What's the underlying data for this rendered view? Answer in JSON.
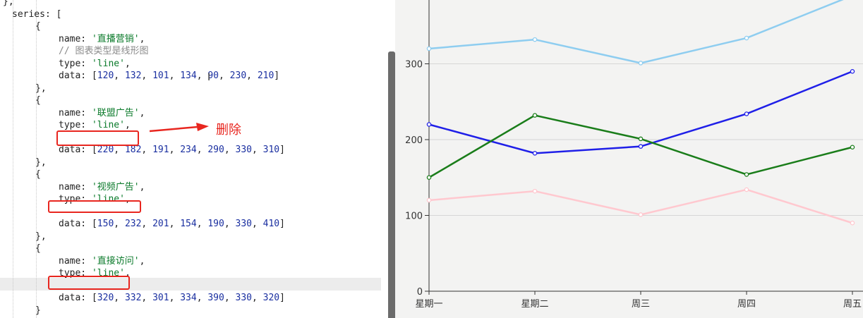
{
  "code": {
    "lines": [
      {
        "indent": 0,
        "parts": [
          {
            "t": "k",
            "v": "},"
          }
        ]
      },
      {
        "indent": 1,
        "parts": [
          {
            "t": "k",
            "v": "series: ["
          }
        ]
      },
      {
        "indent": 2,
        "parts": [
          {
            "t": "k",
            "v": "{"
          }
        ]
      },
      {
        "indent": 3,
        "parts": [
          {
            "t": "k",
            "v": "name: "
          },
          {
            "t": "s",
            "v": "'直播营销'"
          },
          {
            "t": "k",
            "v": ","
          }
        ]
      },
      {
        "indent": 3,
        "parts": [
          {
            "t": "c",
            "v": "// 图表类型是线形图"
          }
        ]
      },
      {
        "indent": 3,
        "parts": [
          {
            "t": "k",
            "v": "type: "
          },
          {
            "t": "s",
            "v": "'line'"
          },
          {
            "t": "k",
            "v": ","
          }
        ]
      },
      {
        "indent": 3,
        "parts": [
          {
            "t": "k",
            "v": "data: ["
          },
          {
            "t": "n",
            "v": "120"
          },
          {
            "t": "k",
            "v": ", "
          },
          {
            "t": "n",
            "v": "132"
          },
          {
            "t": "k",
            "v": ", "
          },
          {
            "t": "n",
            "v": "101"
          },
          {
            "t": "k",
            "v": ", "
          },
          {
            "t": "n",
            "v": "134"
          },
          {
            "t": "k",
            "v": ", "
          },
          {
            "t": "n",
            "v": "90"
          },
          {
            "t": "k",
            "v": ", "
          },
          {
            "t": "n",
            "v": "230"
          },
          {
            "t": "k",
            "v": ", "
          },
          {
            "t": "n",
            "v": "210"
          },
          {
            "t": "k",
            "v": "]"
          }
        ]
      },
      {
        "indent": 2,
        "parts": [
          {
            "t": "k",
            "v": "},"
          }
        ]
      },
      {
        "indent": 2,
        "parts": [
          {
            "t": "k",
            "v": "{"
          }
        ]
      },
      {
        "indent": 3,
        "parts": [
          {
            "t": "k",
            "v": "name: "
          },
          {
            "t": "s",
            "v": "'联盟广告'"
          },
          {
            "t": "k",
            "v": ","
          }
        ]
      },
      {
        "indent": 3,
        "parts": [
          {
            "t": "k",
            "v": "type: "
          },
          {
            "t": "s",
            "v": "'line'"
          },
          {
            "t": "k",
            "v": ","
          }
        ]
      },
      {
        "indent": 3,
        "parts": []
      },
      {
        "indent": 3,
        "parts": [
          {
            "t": "k",
            "v": "data: ["
          },
          {
            "t": "n",
            "v": "220"
          },
          {
            "t": "k",
            "v": ", "
          },
          {
            "t": "n",
            "v": "182"
          },
          {
            "t": "k",
            "v": ", "
          },
          {
            "t": "n",
            "v": "191"
          },
          {
            "t": "k",
            "v": ", "
          },
          {
            "t": "n",
            "v": "234"
          },
          {
            "t": "k",
            "v": ", "
          },
          {
            "t": "n",
            "v": "290"
          },
          {
            "t": "k",
            "v": ", "
          },
          {
            "t": "n",
            "v": "330"
          },
          {
            "t": "k",
            "v": ", "
          },
          {
            "t": "n",
            "v": "310"
          },
          {
            "t": "k",
            "v": "]"
          }
        ]
      },
      {
        "indent": 2,
        "parts": [
          {
            "t": "k",
            "v": "},"
          }
        ]
      },
      {
        "indent": 2,
        "parts": [
          {
            "t": "k",
            "v": "{"
          }
        ]
      },
      {
        "indent": 3,
        "parts": [
          {
            "t": "k",
            "v": "name: "
          },
          {
            "t": "s",
            "v": "'视频广告'"
          },
          {
            "t": "k",
            "v": ","
          }
        ]
      },
      {
        "indent": 3,
        "parts": [
          {
            "t": "k",
            "v": "type: "
          },
          {
            "t": "s",
            "v": "'line'"
          },
          {
            "t": "k",
            "v": ","
          }
        ]
      },
      {
        "indent": 3,
        "parts": []
      },
      {
        "indent": 3,
        "parts": [
          {
            "t": "k",
            "v": "data: ["
          },
          {
            "t": "n",
            "v": "150"
          },
          {
            "t": "k",
            "v": ", "
          },
          {
            "t": "n",
            "v": "232"
          },
          {
            "t": "k",
            "v": ", "
          },
          {
            "t": "n",
            "v": "201"
          },
          {
            "t": "k",
            "v": ", "
          },
          {
            "t": "n",
            "v": "154"
          },
          {
            "t": "k",
            "v": ", "
          },
          {
            "t": "n",
            "v": "190"
          },
          {
            "t": "k",
            "v": ", "
          },
          {
            "t": "n",
            "v": "330"
          },
          {
            "t": "k",
            "v": ", "
          },
          {
            "t": "n",
            "v": "410"
          },
          {
            "t": "k",
            "v": "]"
          }
        ]
      },
      {
        "indent": 2,
        "parts": [
          {
            "t": "k",
            "v": "},"
          }
        ]
      },
      {
        "indent": 2,
        "parts": [
          {
            "t": "k",
            "v": "{"
          }
        ]
      },
      {
        "indent": 3,
        "parts": [
          {
            "t": "k",
            "v": "name: "
          },
          {
            "t": "s",
            "v": "'直接访问'"
          },
          {
            "t": "k",
            "v": ","
          }
        ]
      },
      {
        "indent": 3,
        "parts": [
          {
            "t": "k",
            "v": "type: "
          },
          {
            "t": "s",
            "v": "'line'"
          },
          {
            "t": "k",
            "v": ","
          }
        ]
      },
      {
        "indent": 3,
        "parts": []
      },
      {
        "indent": 3,
        "parts": [
          {
            "t": "k",
            "v": "data: ["
          },
          {
            "t": "n",
            "v": "320"
          },
          {
            "t": "k",
            "v": ", "
          },
          {
            "t": "n",
            "v": "332"
          },
          {
            "t": "k",
            "v": ", "
          },
          {
            "t": "n",
            "v": "301"
          },
          {
            "t": "k",
            "v": ", "
          },
          {
            "t": "n",
            "v": "334"
          },
          {
            "t": "k",
            "v": ", "
          },
          {
            "t": "n",
            "v": "390"
          },
          {
            "t": "k",
            "v": ", "
          },
          {
            "t": "n",
            "v": "330"
          },
          {
            "t": "k",
            "v": ", "
          },
          {
            "t": "n",
            "v": "320"
          },
          {
            "t": "k",
            "v": "]"
          }
        ]
      },
      {
        "indent": 2,
        "parts": [
          {
            "t": "k",
            "v": "}"
          }
        ]
      },
      {
        "indent": 1,
        "parts": [
          {
            "t": "k",
            "v": "]"
          }
        ]
      }
    ]
  },
  "annotation": {
    "note_text": "删除",
    "color": "#e8261f"
  },
  "chart_data": {
    "type": "line",
    "categories": [
      "星期一",
      "星期二",
      "周三",
      "周四",
      "周五"
    ],
    "y_ticks": [
      "0",
      "100",
      "200",
      "300"
    ],
    "ylim": [
      0,
      400
    ],
    "grid": true,
    "series": [
      {
        "color": "#8ecdf0",
        "values": [
          320,
          332,
          301,
          334,
          390
        ]
      },
      {
        "color": "#1f1fe8",
        "values": [
          220,
          182,
          191,
          234,
          290
        ]
      },
      {
        "color": "#1a7d1a",
        "values": [
          150,
          232,
          201,
          154,
          190
        ]
      },
      {
        "color": "#ffc8cf",
        "values": [
          120,
          132,
          101,
          134,
          90
        ]
      }
    ]
  }
}
